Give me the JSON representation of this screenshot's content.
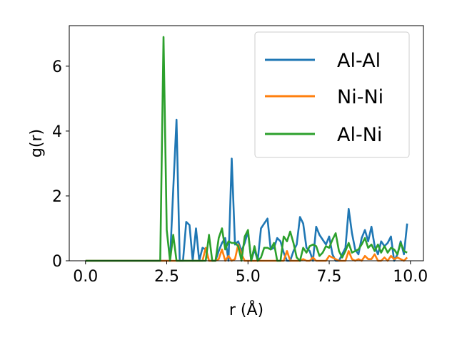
{
  "chart_data": {
    "type": "line",
    "title": "",
    "xlabel": "r (Å)",
    "ylabel": "g(r)",
    "xlim": [
      -0.5,
      10.4
    ],
    "ylim": [
      0,
      7.25
    ],
    "x_ticks": [
      0.0,
      2.5,
      5.0,
      7.5,
      10.0
    ],
    "x_tick_labels": [
      "0.0",
      "2.5",
      "5.0",
      "7.5",
      "10.0"
    ],
    "y_ticks": [
      0,
      2,
      4,
      6
    ],
    "y_tick_labels": [
      "0",
      "2",
      "4",
      "6"
    ],
    "legend_position": "top-right",
    "grid": false,
    "x": [
      0.0,
      0.1,
      0.2,
      0.3,
      0.4,
      0.5,
      0.6,
      0.7,
      0.8,
      0.9,
      1.0,
      1.1,
      1.2,
      1.3,
      1.4,
      1.5,
      1.6,
      1.7,
      1.8,
      1.9,
      2.0,
      2.1,
      2.2,
      2.3,
      2.4,
      2.5,
      2.6,
      2.7,
      2.8,
      2.9,
      3.0,
      3.1,
      3.2,
      3.3,
      3.4,
      3.5,
      3.6,
      3.7,
      3.8,
      3.9,
      4.0,
      4.1,
      4.2,
      4.3,
      4.4,
      4.5,
      4.6,
      4.7,
      4.8,
      4.9,
      5.0,
      5.1,
      5.2,
      5.3,
      5.4,
      5.5,
      5.6,
      5.7,
      5.8,
      5.9,
      6.0,
      6.1,
      6.2,
      6.3,
      6.4,
      6.5,
      6.6,
      6.7,
      6.8,
      6.9,
      7.0,
      7.1,
      7.2,
      7.3,
      7.4,
      7.5,
      7.6,
      7.7,
      7.8,
      7.9,
      8.0,
      8.1,
      8.2,
      8.3,
      8.4,
      8.5,
      8.6,
      8.7,
      8.8,
      8.9,
      9.0,
      9.1,
      9.2,
      9.3,
      9.4,
      9.5,
      9.6,
      9.7,
      9.8,
      9.9
    ],
    "series": [
      {
        "name": "Al-Al",
        "color": "#1f77b4",
        "values": [
          0,
          0,
          0,
          0,
          0,
          0,
          0,
          0,
          0,
          0,
          0,
          0,
          0,
          0,
          0,
          0,
          0,
          0,
          0,
          0,
          0,
          0,
          0,
          0,
          0,
          0,
          0,
          2.2,
          4.35,
          0,
          0,
          1.2,
          1.1,
          0,
          1.0,
          0,
          0.4,
          0.35,
          0,
          0,
          0,
          0.3,
          0.55,
          0.7,
          0,
          3.15,
          0.5,
          0.6,
          0.3,
          0.55,
          0.9,
          0,
          0.35,
          0,
          1.0,
          1.15,
          1.3,
          0.35,
          0.4,
          0.7,
          0.6,
          0.25,
          0,
          0,
          0.3,
          0.5,
          1.35,
          1.15,
          0.4,
          0.3,
          0,
          1.05,
          0.8,
          0.65,
          0.5,
          0.75,
          0.2,
          0,
          0,
          0.2,
          0.4,
          1.6,
          0.85,
          0.35,
          0.2,
          0.7,
          0.95,
          0.6,
          1.05,
          0.45,
          0.2,
          0.6,
          0.45,
          0.55,
          0.75,
          0,
          0.2,
          0.6,
          0.2,
          1.15
        ]
      },
      {
        "name": "Ni-Ni",
        "color": "#ff7f0e",
        "values": [
          0,
          0,
          0,
          0,
          0,
          0,
          0,
          0,
          0,
          0,
          0,
          0,
          0,
          0,
          0,
          0,
          0,
          0,
          0,
          0,
          0,
          0,
          0,
          0,
          0,
          0,
          0,
          0,
          0,
          0,
          0,
          0,
          0,
          0,
          0,
          0,
          0,
          0.4,
          0,
          0,
          0,
          0.05,
          0.35,
          0,
          0.15,
          0,
          0.05,
          0.5,
          0.2,
          0,
          0,
          0,
          0,
          0,
          0,
          0,
          0,
          0,
          0,
          0,
          0,
          0,
          0.3,
          0,
          0,
          0,
          0,
          0.05,
          0,
          0,
          0.1,
          0,
          0,
          0,
          0,
          0.15,
          0.1,
          0.05,
          0,
          0,
          0,
          0.3,
          0.05,
          0,
          0.05,
          0,
          0.15,
          0.05,
          0.05,
          0.2,
          0,
          0,
          0.1,
          0,
          0.15,
          0.05,
          0.1,
          0.05,
          0,
          0.1
        ]
      },
      {
        "name": "Al-Ni",
        "color": "#2ca02c",
        "values": [
          0,
          0,
          0,
          0,
          0,
          0,
          0,
          0,
          0,
          0,
          0,
          0,
          0,
          0,
          0,
          0,
          0,
          0,
          0,
          0,
          0,
          0,
          0,
          0,
          6.9,
          0.95,
          0,
          0.8,
          0,
          0,
          0,
          0,
          0,
          0,
          0,
          0,
          0,
          0,
          0.8,
          0,
          0,
          0.7,
          1.0,
          0.35,
          0.6,
          0.55,
          0.55,
          0.45,
          0,
          0.75,
          0.95,
          0,
          0.45,
          0,
          0.1,
          0.4,
          0.4,
          0.35,
          0.55,
          0,
          0,
          0.75,
          0.6,
          0.9,
          0.55,
          0.1,
          0,
          0.4,
          0.25,
          0.45,
          0.5,
          0.45,
          0.15,
          0.25,
          0.45,
          0.4,
          0.65,
          0.85,
          0.3,
          0.1,
          0.3,
          0.55,
          0.25,
          0.3,
          0.35,
          0.5,
          0.7,
          0.4,
          0.5,
          0.3,
          0.5,
          0.25,
          0.45,
          0.25,
          0.4,
          0.35,
          0.2,
          0.55,
          0.3,
          0.25
        ]
      }
    ]
  }
}
